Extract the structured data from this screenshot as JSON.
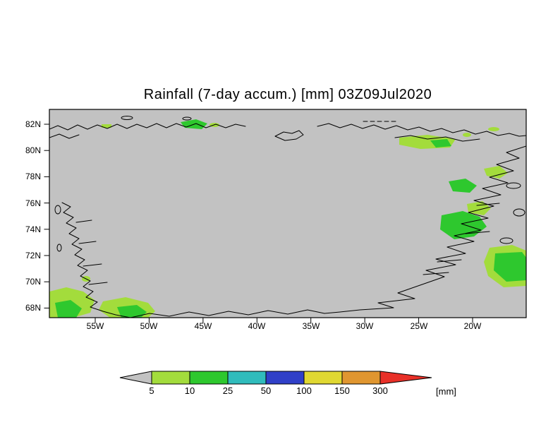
{
  "title": "Rainfall (7-day accum.) [mm] 03Z09Jul2020",
  "map": {
    "background_color": "#c2c2c2",
    "lat_labels": [
      "82N",
      "80N",
      "78N",
      "76N",
      "74N",
      "72N",
      "70N",
      "68N"
    ],
    "lon_labels": [
      "55W",
      "50W",
      "45W",
      "40W",
      "35W",
      "30W",
      "25W",
      "20W"
    ]
  },
  "colorbar": {
    "tick_labels": [
      "5",
      "10",
      "25",
      "50",
      "100",
      "150",
      "300"
    ],
    "segment_colors": [
      "#c2c2c2",
      "#a3dc3c",
      "#2ec82e",
      "#30bcbc",
      "#3040c8",
      "#e0d832",
      "#e09630",
      "#e83028"
    ],
    "units_label": "[mm]"
  },
  "chart_data": {
    "type": "heatmap",
    "title": "Rainfall (7-day accum.) [mm] 03Z09Jul2020",
    "variable": "7-day accumulated rainfall",
    "valid_time": "03Z09Jul2020",
    "units": "mm",
    "x_ticks": [
      "55W",
      "50W",
      "45W",
      "40W",
      "35W",
      "30W",
      "25W",
      "20W"
    ],
    "y_ticks": [
      "82N",
      "80N",
      "78N",
      "76N",
      "74N",
      "72N",
      "70N",
      "68N"
    ],
    "contour_levels": [
      5,
      10,
      25,
      50,
      100,
      150,
      300
    ],
    "level_colors": [
      "#c2c2c2",
      "#a3dc3c",
      "#2ec82e",
      "#30bcbc",
      "#3040c8",
      "#e0d832",
      "#e09630",
      "#e83028"
    ],
    "legend_position": "bottom",
    "observations": [
      "most of domain below 5 mm (gray background)",
      "5-25 mm patches along southwest Greenland coast near 68N, 50-57W",
      "5-25 mm patches along east Greenland coast fjords near 70-75N, 22-28W",
      "10-25 mm patch at far right edge near 70-71N, 18-20W",
      "5-10 mm streak along northeast coast near 80-81N, 25-30W",
      "small 5-25 mm specks along the north coast near 82N"
    ]
  }
}
